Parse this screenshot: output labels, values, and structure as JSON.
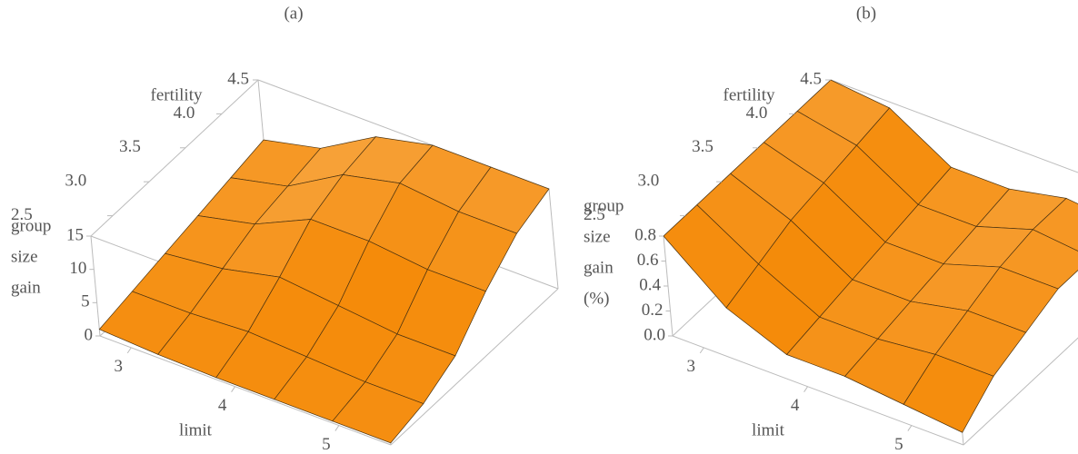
{
  "chart_data": [
    {
      "type": "surface",
      "title": "(a)",
      "x_label": "limit",
      "y_label": "fertility",
      "z_label": [
        "group",
        "size",
        "gain"
      ],
      "color": "#f39a1e",
      "x": [
        2.7,
        3.26,
        3.82,
        4.38,
        4.94,
        5.5
      ],
      "y": [
        2.2,
        2.66,
        3.12,
        3.58,
        4.04,
        4.5
      ],
      "z": [
        [
          1,
          0.5,
          0.3,
          0.3,
          0.3,
          0.3
        ],
        [
          2,
          2,
          2.5,
          2,
          1.5,
          1.5
        ],
        [
          3,
          4,
          6,
          5,
          4,
          4
        ],
        [
          4,
          6,
          10,
          10,
          9,
          9
        ],
        [
          5,
          7,
          12,
          14,
          13,
          13
        ],
        [
          6,
          8,
          13,
          15,
          15,
          15
        ]
      ],
      "xlim": [
        2.7,
        5.5
      ],
      "ylim": [
        2.2,
        4.5
      ],
      "zlim": [
        0,
        15
      ],
      "xticks": [
        3,
        4,
        5
      ],
      "yticks": [
        2.5,
        {
          "value": 3,
          "label": "3.0"
        },
        3.5,
        {
          "value": 4,
          "label": "4.0"
        },
        4.5
      ],
      "zticks": [
        0,
        5,
        10,
        15
      ]
    },
    {
      "type": "surface",
      "title": "(b)",
      "x_label": "limit",
      "y_label": "fertility",
      "z_label": [
        "group",
        "size",
        "gain",
        "(%)"
      ],
      "color": "#f7a51f",
      "x": [
        2.7,
        3.26,
        3.82,
        4.38,
        4.94,
        5.5
      ],
      "y": [
        2.2,
        2.66,
        3.12,
        3.58,
        4.04,
        4.5
      ],
      "z": [
        [
          0.8,
          0.4,
          0.2,
          0.2,
          0.15,
          0.1
        ],
        [
          0.8,
          0.5,
          0.25,
          0.25,
          0.3,
          0.3
        ],
        [
          0.8,
          0.6,
          0.3,
          0.3,
          0.4,
          0.4
        ],
        [
          0.8,
          0.65,
          0.35,
          0.35,
          0.5,
          0.5
        ],
        [
          0.8,
          0.7,
          0.4,
          0.4,
          0.55,
          0.5
        ],
        [
          0.8,
          0.75,
          0.45,
          0.45,
          0.55,
          0.5
        ]
      ],
      "xlim": [
        2.7,
        5.5
      ],
      "ylim": [
        2.2,
        4.5
      ],
      "zlim": [
        0,
        0.8
      ],
      "xticks": [
        3,
        4,
        5
      ],
      "yticks": [
        2.5,
        {
          "value": 3,
          "label": "3.0"
        },
        3.5,
        {
          "value": 4,
          "label": "4.0"
        },
        4.5
      ],
      "zticks": [
        {
          "value": 0,
          "label": "0.0"
        },
        0.2,
        0.4,
        0.6,
        0.8
      ]
    }
  ]
}
